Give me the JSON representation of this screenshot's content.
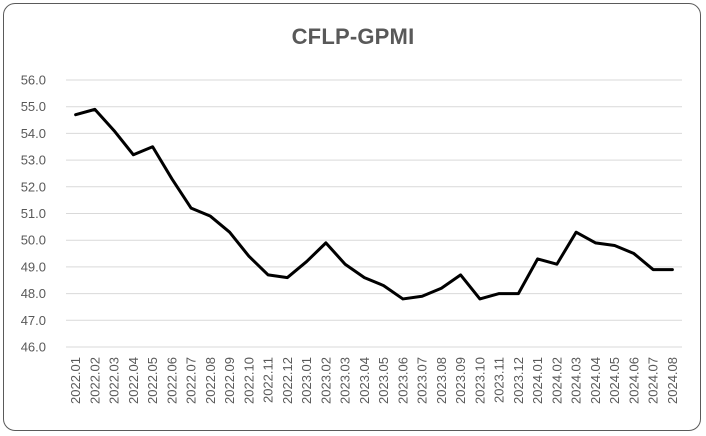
{
  "chart_data": {
    "type": "line",
    "title": "CFLP-GPMI",
    "xlabel": "",
    "ylabel": "",
    "ylim": [
      46.0,
      56.0
    ],
    "ytick_step": 1.0,
    "grid": true,
    "legend": "none",
    "line_color": "#000000",
    "grid_color": "#d9d9d9",
    "categories": [
      "2022.01",
      "2022.02",
      "2022.03",
      "2022.04",
      "2022.05",
      "2022.06",
      "2022.07",
      "2022.08",
      "2022.09",
      "2022.10",
      "2022.11",
      "2022.12",
      "2023.01",
      "2023.02",
      "2023.03",
      "2023.04",
      "2023.05",
      "2023.06",
      "2023.07",
      "2023.08",
      "2023.09",
      "2023.10",
      "2023.11",
      "2023.12",
      "2024.01",
      "2024.02",
      "2024.03",
      "2024.04",
      "2024.05",
      "2024.06",
      "2024.07",
      "2024.08"
    ],
    "values": [
      54.7,
      54.9,
      54.1,
      53.2,
      53.5,
      52.3,
      51.2,
      50.9,
      50.3,
      49.4,
      48.7,
      48.6,
      49.2,
      49.9,
      49.1,
      48.6,
      48.3,
      47.8,
      47.9,
      48.2,
      48.7,
      47.8,
      48.0,
      48.0,
      49.3,
      49.1,
      50.3,
      49.9,
      49.8,
      49.5,
      48.9,
      48.9
    ]
  }
}
